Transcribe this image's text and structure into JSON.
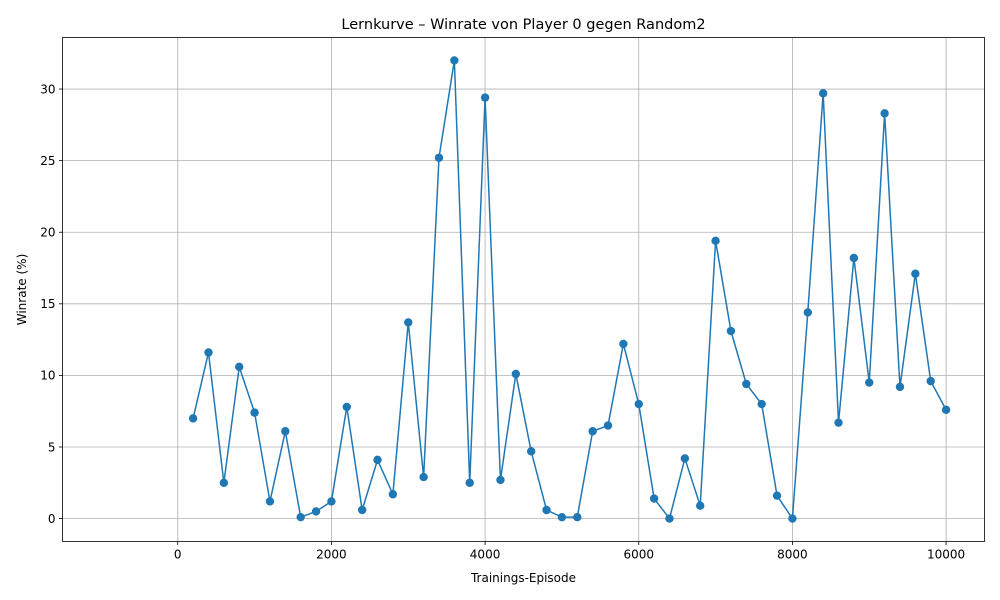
{
  "chart_data": {
    "type": "line",
    "title": "Lernkurve – Winrate von Player 0 gegen Random2",
    "xlabel": "Trainings-Episode",
    "ylabel": "Winrate (%)",
    "xlim": [
      -1500,
      10500
    ],
    "ylim": [
      -1.6,
      33.6
    ],
    "xticks": [
      0,
      2000,
      4000,
      6000,
      8000,
      10000
    ],
    "yticks": [
      0,
      5,
      10,
      15,
      20,
      25,
      30
    ],
    "grid": true,
    "legend": "none",
    "marker": "circle",
    "colors": {
      "series": "#1f77b4",
      "grid": "#b0b0b0"
    },
    "series": [
      {
        "x": [
          200,
          400,
          600,
          800,
          1000,
          1200,
          1400,
          1600,
          1800,
          2000,
          2200,
          2400,
          2600,
          2800,
          3000,
          3200,
          3400,
          3600,
          3800,
          4000,
          4200,
          4400,
          4600,
          4800,
          5000,
          5200,
          5400,
          5600,
          5800,
          6000,
          6200,
          6400,
          6600,
          6800,
          7000,
          7200,
          7400,
          7600,
          7800,
          8000,
          8200,
          8400,
          8600,
          8800,
          9000,
          9200,
          9400,
          9600,
          9800,
          10000
        ],
        "values": [
          7.0,
          11.6,
          2.5,
          10.6,
          7.4,
          1.2,
          6.1,
          0.1,
          0.5,
          1.2,
          7.8,
          0.6,
          4.1,
          1.7,
          13.7,
          2.9,
          25.2,
          32.0,
          2.5,
          29.4,
          2.7,
          10.1,
          4.7,
          0.6,
          0.1,
          0.1,
          6.1,
          6.5,
          12.2,
          8.0,
          1.4,
          0.0,
          4.2,
          0.9,
          19.4,
          13.1,
          9.4,
          8.0,
          1.6,
          0.0,
          14.4,
          29.7,
          6.7,
          18.2,
          9.5,
          28.3,
          9.2,
          17.1,
          9.6,
          7.6
        ]
      }
    ]
  }
}
